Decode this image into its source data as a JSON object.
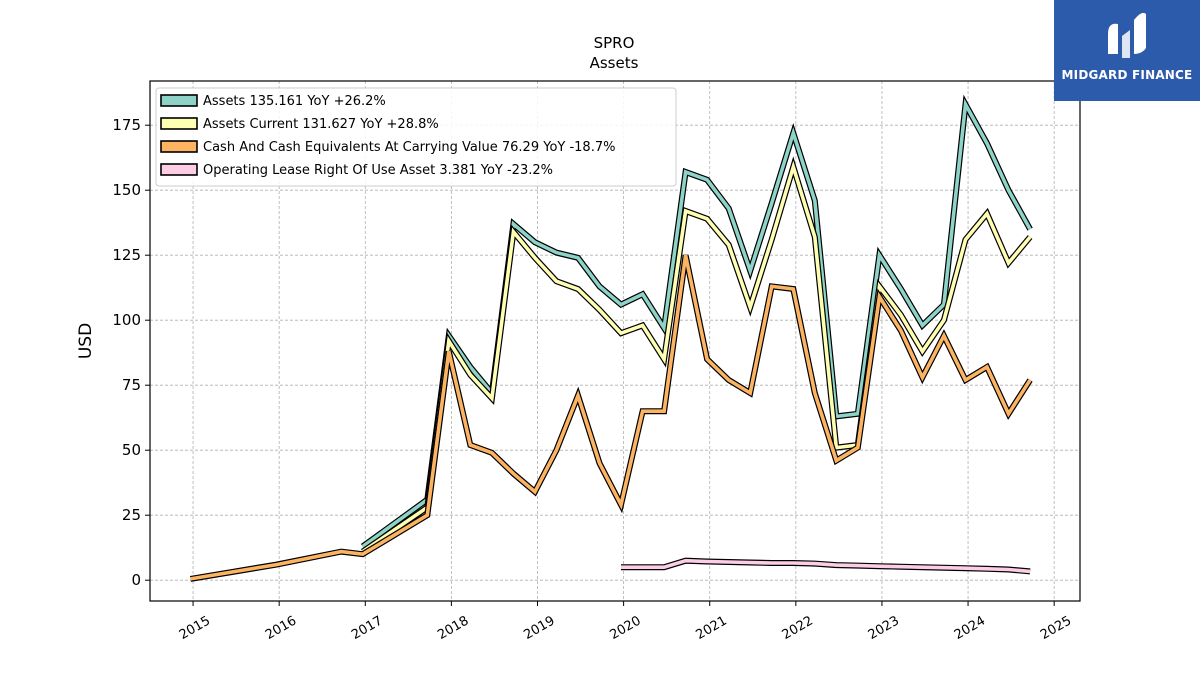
{
  "brand": {
    "name": "MIDGARD FINANCE",
    "bg": "#2d5bab"
  },
  "chart_data": {
    "type": "line",
    "title": "SPRO",
    "subtitle": "Assets",
    "ylabel": "USD",
    "xlabel": "",
    "ylim": [
      -8,
      192
    ],
    "xlim": [
      2014.5,
      2025.3
    ],
    "yticks": [
      0,
      25,
      50,
      75,
      100,
      125,
      150,
      175
    ],
    "xticks": [
      "2015",
      "2016",
      "2017",
      "2018",
      "2019",
      "2020",
      "2021",
      "2022",
      "2023",
      "2024",
      "2025"
    ],
    "grid": true,
    "legend_position": "top-left",
    "series": [
      {
        "name": "Assets  135.161 YoY +26.2%",
        "color": "#8dd3c7",
        "x": [
          2016.97,
          2017.72,
          2017.97,
          2018.22,
          2018.47,
          2018.72,
          2018.97,
          2019.22,
          2019.47,
          2019.72,
          2019.97,
          2020.22,
          2020.47,
          2020.72,
          2020.97,
          2021.22,
          2021.47,
          2021.72,
          2021.97,
          2022.22,
          2022.47,
          2022.72,
          2022.97,
          2023.22,
          2023.47,
          2023.72,
          2023.97,
          2024.22,
          2024.47,
          2024.72
        ],
        "y": [
          13,
          31,
          94,
          82,
          72,
          137,
          130,
          126,
          124,
          113,
          106,
          110,
          97,
          157,
          154,
          143,
          119,
          145,
          172,
          146,
          63,
          64,
          125,
          112,
          98,
          106,
          183,
          168,
          150,
          135
        ]
      },
      {
        "name": "Assets Current  131.627 YoY +28.8%",
        "color": "#ffffb3",
        "x": [
          2016.97,
          2017.72,
          2017.97,
          2018.22,
          2018.47,
          2018.72,
          2018.97,
          2019.22,
          2019.47,
          2019.72,
          2019.97,
          2020.22,
          2020.47,
          2020.72,
          2020.97,
          2021.22,
          2021.47,
          2021.72,
          2021.97,
          2022.22,
          2022.47,
          2022.72,
          2022.97,
          2023.22,
          2023.47,
          2023.72,
          2023.97,
          2024.22,
          2024.47,
          2024.72
        ],
        "y": [
          11,
          28,
          92,
          79,
          70,
          134,
          124,
          115,
          112,
          104,
          95,
          98,
          85,
          142,
          139,
          129,
          105,
          131,
          159,
          132,
          51,
          52,
          113,
          102,
          88,
          100,
          131,
          141,
          122,
          132
        ]
      },
      {
        "name": "Cash And Cash Equivalents At Carrying Value  76.29 YoY -18.7%",
        "color": "#fdb462",
        "x": [
          2014.97,
          2015.97,
          2016.72,
          2016.97,
          2017.72,
          2017.97,
          2018.22,
          2018.47,
          2018.72,
          2018.97,
          2019.22,
          2019.47,
          2019.72,
          2019.97,
          2020.22,
          2020.47,
          2020.72,
          2020.97,
          2021.22,
          2021.47,
          2021.72,
          2021.97,
          2022.22,
          2022.47,
          2022.72,
          2022.97,
          2023.22,
          2023.47,
          2023.72,
          2023.97,
          2024.22,
          2024.47,
          2024.72
        ],
        "y": [
          0.5,
          6,
          11,
          10,
          25,
          88,
          52,
          49,
          41,
          34,
          50,
          71,
          45,
          29,
          65,
          65,
          125,
          85,
          77,
          72,
          113,
          112,
          72,
          46,
          51,
          109,
          96,
          78,
          94,
          77,
          82,
          64,
          77
        ]
      },
      {
        "name": "Operating Lease Right Of Use Asset  3.381 YoY -23.2%",
        "color": "#fccde5",
        "x": [
          2019.97,
          2020.22,
          2020.47,
          2020.72,
          2020.97,
          2021.22,
          2021.47,
          2021.72,
          2021.97,
          2022.22,
          2022.47,
          2022.72,
          2022.97,
          2023.22,
          2023.47,
          2023.72,
          2023.97,
          2024.22,
          2024.47,
          2024.72
        ],
        "y": [
          5,
          5,
          5,
          7.5,
          7.2,
          7,
          6.8,
          6.6,
          6.6,
          6.4,
          5.8,
          5.6,
          5.4,
          5.2,
          5.0,
          4.8,
          4.6,
          4.4,
          4.1,
          3.4
        ]
      }
    ]
  }
}
